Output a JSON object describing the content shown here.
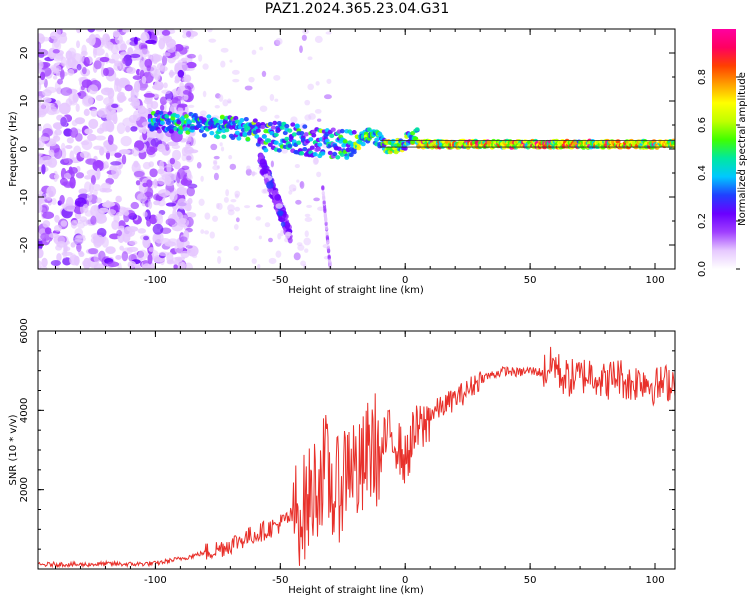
{
  "title": "PAZ1.2024.365.23.04.G31",
  "chart_data": [
    {
      "type": "heatmap",
      "xlabel": "Height of straight line (km)",
      "ylabel": "Frequency (Hz)",
      "xlim": [
        -147,
        108
      ],
      "ylim": [
        -25,
        25
      ],
      "x_ticks": [
        -100,
        -50,
        0,
        50,
        100
      ],
      "y_ticks": [
        -20,
        -10,
        0,
        10,
        20
      ],
      "colorbar": {
        "label": "Normalized spectral amplitude",
        "range": [
          0,
          1
        ],
        "ticks": [
          "0.0",
          "0.2",
          "0.4",
          "0.6",
          "0.8"
        ],
        "colors": [
          "#ffffff",
          "#e6c8ff",
          "#a040ff",
          "#6a00ff",
          "#2040ff",
          "#00c8ff",
          "#00e8a0",
          "#40ff00",
          "#c0ff00",
          "#ffff00",
          "#ffa000",
          "#ff4000",
          "#ff0060",
          "#ff00a0"
        ]
      }
    },
    {
      "type": "line",
      "xlabel": "Height of straight line (km)",
      "ylabel": "SNR (10 * v/v)",
      "xlim": [
        -147,
        108
      ],
      "ylim": [
        0,
        6000
      ],
      "x_ticks": [
        -100,
        -50,
        0,
        50,
        100
      ],
      "y_ticks": [
        2000,
        4000,
        6000
      ],
      "series": [
        {
          "color": "#e8302a",
          "x": [
            -147,
            -140,
            -130,
            -120,
            -110,
            -100,
            -95,
            -90,
            -85,
            -80,
            -75,
            -70,
            -65,
            -60,
            -55,
            -50,
            -45,
            -40,
            -35,
            -32,
            -30,
            -28,
            -25,
            -22,
            -20,
            -18,
            -15,
            -12,
            -10,
            -8,
            -5,
            -2,
            0,
            3,
            5,
            8,
            10,
            15,
            20,
            25,
            30,
            35,
            40,
            45,
            50,
            55,
            58,
            60,
            62,
            65,
            70,
            75,
            80,
            85,
            90,
            95,
            100,
            105,
            108
          ],
          "y": [
            100,
            120,
            110,
            130,
            120,
            140,
            200,
            260,
            330,
            420,
            500,
            620,
            760,
            880,
            1000,
            1150,
            1350,
            1550,
            2200,
            2600,
            2100,
            1800,
            2300,
            2900,
            2500,
            2300,
            2900,
            3100,
            2600,
            3300,
            3400,
            3000,
            2700,
            3300,
            3500,
            3600,
            3900,
            4100,
            4300,
            4500,
            4800,
            4900,
            5000,
            4950,
            5000,
            4950,
            5100,
            5200,
            4900,
            4800,
            4850,
            4950,
            4700,
            4900,
            4650,
            4800,
            4600,
            4700,
            4750
          ]
        }
      ]
    }
  ]
}
